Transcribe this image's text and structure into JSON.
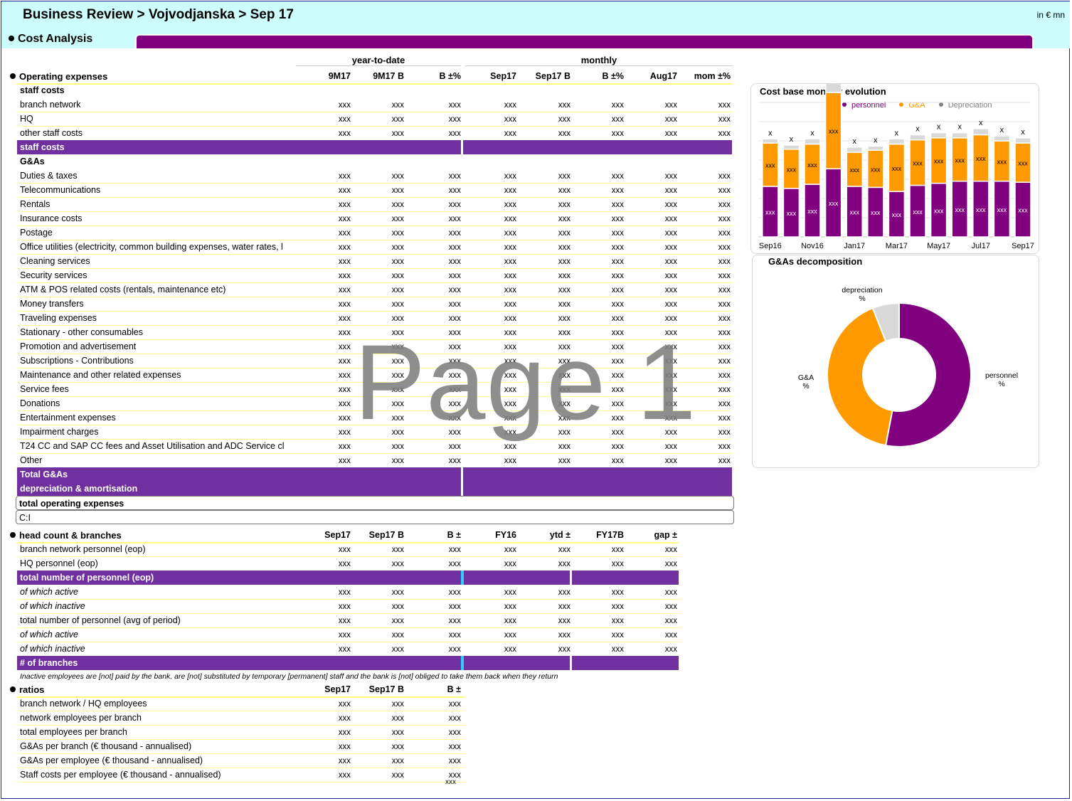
{
  "header": {
    "title": "Business Review > Vojvodjanska > Sep 17",
    "units": "in € mn",
    "section": "Cost Analysis"
  },
  "opex": {
    "group_ytd": "year-to-date",
    "group_monthly": "monthly",
    "section_label": "Operating expenses",
    "columns": [
      "9M17",
      "9M17 B",
      "B ±%",
      "Sep17",
      "Sep17 B",
      "B ±%",
      "Aug17",
      "mom ±%"
    ],
    "rows": [
      {
        "label": "staff costs",
        "style": "sub",
        "values": []
      },
      {
        "label": "branch network",
        "style": "data",
        "values": [
          "xxx",
          "xxx",
          "xxx",
          "xxx",
          "xxx",
          "xxx",
          "xxx",
          "xxx"
        ]
      },
      {
        "label": "HQ",
        "style": "data",
        "values": [
          "xxx",
          "xxx",
          "xxx",
          "xxx",
          "xxx",
          "xxx",
          "xxx",
          "xxx"
        ]
      },
      {
        "label": "other staff costs",
        "style": "data",
        "values": [
          "xxx",
          "xxx",
          "xxx",
          "xxx",
          "xxx",
          "xxx",
          "xxx",
          "xxx"
        ]
      },
      {
        "label": "staff costs",
        "style": "total",
        "values": []
      },
      {
        "label": "G&As",
        "style": "sub",
        "values": []
      },
      {
        "label": "Duties & taxes",
        "style": "data",
        "values": [
          "xxx",
          "xxx",
          "xxx",
          "xxx",
          "xxx",
          "xxx",
          "xxx",
          "xxx"
        ]
      },
      {
        "label": "Telecommunications",
        "style": "data",
        "values": [
          "xxx",
          "xxx",
          "xxx",
          "xxx",
          "xxx",
          "xxx",
          "xxx",
          "xxx"
        ]
      },
      {
        "label": "Rentals",
        "style": "data",
        "values": [
          "xxx",
          "xxx",
          "xxx",
          "xxx",
          "xxx",
          "xxx",
          "xxx",
          "xxx"
        ]
      },
      {
        "label": "Insurance costs",
        "style": "data",
        "values": [
          "xxx",
          "xxx",
          "xxx",
          "xxx",
          "xxx",
          "xxx",
          "xxx",
          "xxx"
        ]
      },
      {
        "label": "Postage",
        "style": "data",
        "values": [
          "xxx",
          "xxx",
          "xxx",
          "xxx",
          "xxx",
          "xxx",
          "xxx",
          "xxx"
        ]
      },
      {
        "label": "Office utilities (electricity, common building expenses, water rates, l",
        "style": "data",
        "values": [
          "xxx",
          "xxx",
          "xxx",
          "xxx",
          "xxx",
          "xxx",
          "xxx",
          "xxx"
        ]
      },
      {
        "label": "Cleaning services",
        "style": "data",
        "values": [
          "xxx",
          "xxx",
          "xxx",
          "xxx",
          "xxx",
          "xxx",
          "xxx",
          "xxx"
        ]
      },
      {
        "label": "Security services",
        "style": "data",
        "values": [
          "xxx",
          "xxx",
          "xxx",
          "xxx",
          "xxx",
          "xxx",
          "xxx",
          "xxx"
        ]
      },
      {
        "label": "ATM & POS related costs (rentals, maintenance etc)",
        "style": "data",
        "values": [
          "xxx",
          "xxx",
          "xxx",
          "xxx",
          "xxx",
          "xxx",
          "xxx",
          "xxx"
        ]
      },
      {
        "label": "Money transfers",
        "style": "data",
        "values": [
          "xxx",
          "xxx",
          "xxx",
          "xxx",
          "xxx",
          "xxx",
          "xxx",
          "xxx"
        ]
      },
      {
        "label": "Traveling expenses",
        "style": "data",
        "values": [
          "xxx",
          "xxx",
          "xxx",
          "xxx",
          "xxx",
          "xxx",
          "xxx",
          "xxx"
        ]
      },
      {
        "label": "Stationary - other consumables",
        "style": "data",
        "values": [
          "xxx",
          "xxx",
          "xxx",
          "xxx",
          "xxx",
          "xxx",
          "xxx",
          "xxx"
        ]
      },
      {
        "label": "Promotion and advertisement",
        "style": "data",
        "values": [
          "xxx",
          "xxx",
          "xxx",
          "xxx",
          "xxx",
          "xxx",
          "xxx",
          "xxx"
        ]
      },
      {
        "label": "Subscriptions - Contributions",
        "style": "data",
        "values": [
          "xxx",
          "xxx",
          "xxx",
          "xxx",
          "xxx",
          "xxx",
          "xxx",
          "xxx"
        ]
      },
      {
        "label": "Maintenance and other related expenses",
        "style": "data",
        "values": [
          "xxx",
          "xxx",
          "xxx",
          "xxx",
          "xxx",
          "xxx",
          "xxx",
          "xxx"
        ]
      },
      {
        "label": "Service fees",
        "style": "data",
        "values": [
          "xxx",
          "xxx",
          "xxx",
          "xxx",
          "xxx",
          "xxx",
          "xxx",
          "xxx"
        ]
      },
      {
        "label": "Donations",
        "style": "data",
        "values": [
          "xxx",
          "xxx",
          "xxx",
          "xxx",
          "xxx",
          "xxx",
          "xxx",
          "xxx"
        ]
      },
      {
        "label": "Entertainment expenses",
        "style": "data",
        "values": [
          "xxx",
          "xxx",
          "xxx",
          "xxx",
          "xxx",
          "xxx",
          "xxx",
          "xxx"
        ]
      },
      {
        "label": "Impairment charges",
        "style": "data",
        "values": [
          "xxx",
          "xxx",
          "xxx",
          "xxx",
          "xxx",
          "xxx",
          "xxx",
          "xxx"
        ]
      },
      {
        "label": "T24 CC and SAP CC fees and Asset Utilisation and ADC Service cl",
        "style": "data",
        "values": [
          "xxx",
          "xxx",
          "xxx",
          "xxx",
          "xxx",
          "xxx",
          "xxx",
          "xxx"
        ]
      },
      {
        "label": "Other",
        "style": "data",
        "values": [
          "xxx",
          "xxx",
          "xxx",
          "xxx",
          "xxx",
          "xxx",
          "xxx",
          "xxx"
        ]
      },
      {
        "label": "Total G&As",
        "style": "total",
        "values": []
      },
      {
        "label": "depreciation & amortisation",
        "style": "total",
        "values": []
      },
      {
        "label": "total operating expenses",
        "style": "boxed",
        "values": []
      },
      {
        "label": "C:I",
        "style": "boxed-plain",
        "values": []
      }
    ]
  },
  "headcount": {
    "section_label": "head count & branches",
    "columns": [
      "Sep17",
      "Sep17 B",
      "B ±",
      "FY16",
      "ytd ±",
      "FY17B",
      "gap ±"
    ],
    "rows": [
      {
        "label": "branch network personnel (eop)",
        "style": "data",
        "values": [
          "xxx",
          "xxx",
          "xxx",
          "xxx",
          "xxx",
          "xxx",
          "xxx"
        ]
      },
      {
        "label": "HQ personnel (eop)",
        "style": "data",
        "values": [
          "xxx",
          "xxx",
          "xxx",
          "xxx",
          "xxx",
          "xxx",
          "xxx"
        ]
      },
      {
        "label": "total number of personnel (eop)",
        "style": "total",
        "values": []
      },
      {
        "label": "of which active",
        "style": "italic",
        "values": [
          "xxx",
          "xxx",
          "xxx",
          "xxx",
          "xxx",
          "xxx",
          "xxx"
        ]
      },
      {
        "label": "of which inactive",
        "style": "italic",
        "values": [
          "xxx",
          "xxx",
          "xxx",
          "xxx",
          "xxx",
          "xxx",
          "xxx"
        ]
      },
      {
        "label": "total number of personnel (avg of period)",
        "style": "data",
        "values": [
          "xxx",
          "xxx",
          "xxx",
          "xxx",
          "xxx",
          "xxx",
          "xxx"
        ]
      },
      {
        "label": "of which active",
        "style": "italic",
        "values": [
          "xxx",
          "xxx",
          "xxx",
          "xxx",
          "xxx",
          "xxx",
          "xxx"
        ]
      },
      {
        "label": "of which inactive",
        "style": "italic",
        "values": [
          "xxx",
          "xxx",
          "xxx",
          "xxx",
          "xxx",
          "xxx",
          "xxx"
        ]
      },
      {
        "label": "# of branches",
        "style": "total",
        "values": []
      }
    ],
    "note": "Inactive employees are [not] paid by the bank, are [not] substituted by temporary [permanent] staff and the bank is [not] obliged to take them back when they return"
  },
  "ratios": {
    "section_label": "ratios",
    "columns": [
      "Sep17",
      "Sep17 B",
      "B ±"
    ],
    "rows": [
      {
        "label": "branch network / HQ employees",
        "values": [
          "xxx",
          "xxx",
          "xxx"
        ]
      },
      {
        "label": "network employees per branch",
        "values": [
          "xxx",
          "xxx",
          "xxx"
        ]
      },
      {
        "label": "total employees per branch",
        "values": [
          "xxx",
          "xxx",
          "xxx"
        ]
      },
      {
        "label": "G&As per branch (€ thousand - annualised)",
        "values": [
          "xxx",
          "xxx",
          "xxx"
        ]
      },
      {
        "label": "G&As per employee (€ thousand - annualised)",
        "values": [
          "xxx",
          "xxx",
          "xxx"
        ]
      },
      {
        "label": "Staff costs per employee (€ thousand - annualised)",
        "values": [
          "xxx",
          "xxx",
          "xxx"
        ]
      }
    ],
    "trailing_value": "xxx"
  },
  "watermark": "Page 1",
  "chart_data": [
    {
      "type": "bar",
      "stacked": true,
      "title": "Cost base monthly evolution",
      "legend": [
        "personnel",
        "G&A",
        "Depreciation"
      ],
      "legend_position": "top",
      "categories": [
        "Sep16",
        "Oct16",
        "Nov16",
        "Dec16",
        "Jan17",
        "Feb17",
        "Mar17",
        "Apr17",
        "May17",
        "Jun17",
        "Jul17",
        "Aug17",
        "Sep17"
      ],
      "tick_labels": [
        "Sep16",
        "Nov16",
        "Jan17",
        "Mar17",
        "May17",
        "Jul17",
        "Sep17"
      ],
      "series": [
        {
          "name": "personnel",
          "values": [
            49,
            47,
            51,
            66,
            49,
            48,
            44,
            50,
            52,
            54,
            54,
            54,
            53
          ],
          "data_label": "xxx"
        },
        {
          "name": "G&A",
          "values": [
            42,
            38,
            39,
            74,
            33,
            36,
            46,
            44,
            44,
            42,
            45,
            39,
            38
          ],
          "data_label": "xxx"
        },
        {
          "name": "Depreciation",
          "values": [
            4,
            4,
            5,
            9,
            5,
            4,
            5,
            5,
            5,
            5,
            6,
            5,
            5
          ]
        }
      ],
      "total_label": "x",
      "colors": {
        "personnel": "#800080",
        "G&A": "#ff9900",
        "Depreciation": "#d9d9d9"
      },
      "grid": true
    },
    {
      "type": "pie",
      "donut": true,
      "title": "G&As decomposition",
      "slices": [
        {
          "label": "personnel",
          "value": 53,
          "value_label": "%",
          "color": "#800080"
        },
        {
          "label": "G&A",
          "value": 41,
          "value_label": "%",
          "color": "#ff9900"
        },
        {
          "label": "depreciation",
          "value": 6,
          "value_label": "%",
          "color": "#d9d9d9"
        }
      ]
    }
  ]
}
